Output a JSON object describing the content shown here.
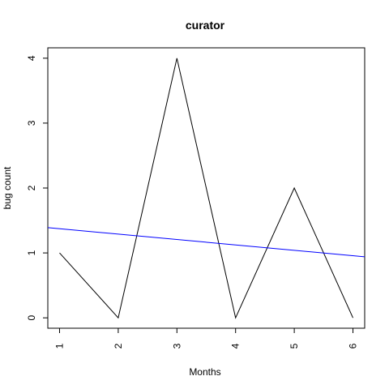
{
  "chart_data": {
    "type": "line",
    "title": "curator",
    "xlabel": "Months",
    "ylabel": "bug count",
    "xlim": [
      0.8,
      6.2
    ],
    "ylim": [
      -0.16,
      4.16
    ],
    "x_ticks": [
      1,
      2,
      3,
      4,
      5,
      6
    ],
    "y_ticks": [
      0,
      1,
      2,
      3,
      4
    ],
    "grid": false,
    "series": [
      {
        "x": [
          1,
          2,
          3,
          4,
          5,
          6
        ],
        "values": [
          1,
          0,
          4,
          0,
          2,
          0
        ],
        "color": "#000000"
      }
    ],
    "trend_line": {
      "x": [
        0.8,
        6.2
      ],
      "values": [
        1.39,
        0.94
      ],
      "color": "#0000ff"
    }
  }
}
